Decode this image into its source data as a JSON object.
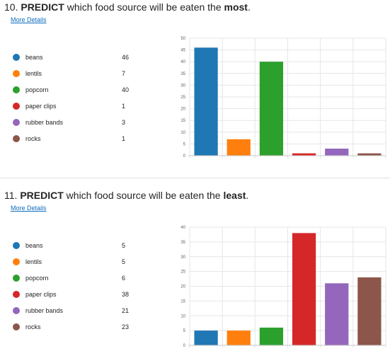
{
  "questions": [
    {
      "number": "10.",
      "title_pre": "PREDICT",
      "title_mid": " which food source will be eaten the ",
      "title_emph": "most",
      "title_end": ".",
      "more_details": "More Details",
      "legend": [
        {
          "label": "beans",
          "value": "46"
        },
        {
          "label": "lentils",
          "value": "7"
        },
        {
          "label": "popcorn",
          "value": "40"
        },
        {
          "label": "paper clips",
          "value": "1"
        },
        {
          "label": "rubber bands",
          "value": "3"
        },
        {
          "label": "rocks",
          "value": "1"
        }
      ]
    },
    {
      "number": "11.",
      "title_pre": "PREDICT",
      "title_mid": " which food source will be eaten the ",
      "title_emph": "least",
      "title_end": ".",
      "more_details": "More Details",
      "legend": [
        {
          "label": "beans",
          "value": "5"
        },
        {
          "label": "lentils",
          "value": "5"
        },
        {
          "label": "popcorn",
          "value": "6"
        },
        {
          "label": "paper clips",
          "value": "38"
        },
        {
          "label": "rubber bands",
          "value": "21"
        },
        {
          "label": "rocks",
          "value": "23"
        }
      ]
    }
  ],
  "colors": [
    "#1f77b4",
    "#ff7f0e",
    "#2ca02c",
    "#d62728",
    "#9467bd",
    "#8c564b"
  ],
  "chart_data": [
    {
      "type": "bar",
      "categories": [
        "beans",
        "lentils",
        "popcorn",
        "paper clips",
        "rubber bands",
        "rocks"
      ],
      "values": [
        46,
        7,
        40,
        1,
        3,
        1
      ],
      "ylim": [
        0,
        50
      ],
      "yticks": [
        0,
        5,
        10,
        15,
        20,
        25,
        30,
        35,
        40,
        45,
        50
      ],
      "grid": true
    },
    {
      "type": "bar",
      "categories": [
        "beans",
        "lentils",
        "popcorn",
        "paper clips",
        "rubber bands",
        "rocks"
      ],
      "values": [
        5,
        5,
        6,
        38,
        21,
        23
      ],
      "ylim": [
        0,
        40
      ],
      "yticks": [
        0,
        5,
        10,
        15,
        20,
        25,
        30,
        35,
        40
      ],
      "grid": true
    }
  ]
}
